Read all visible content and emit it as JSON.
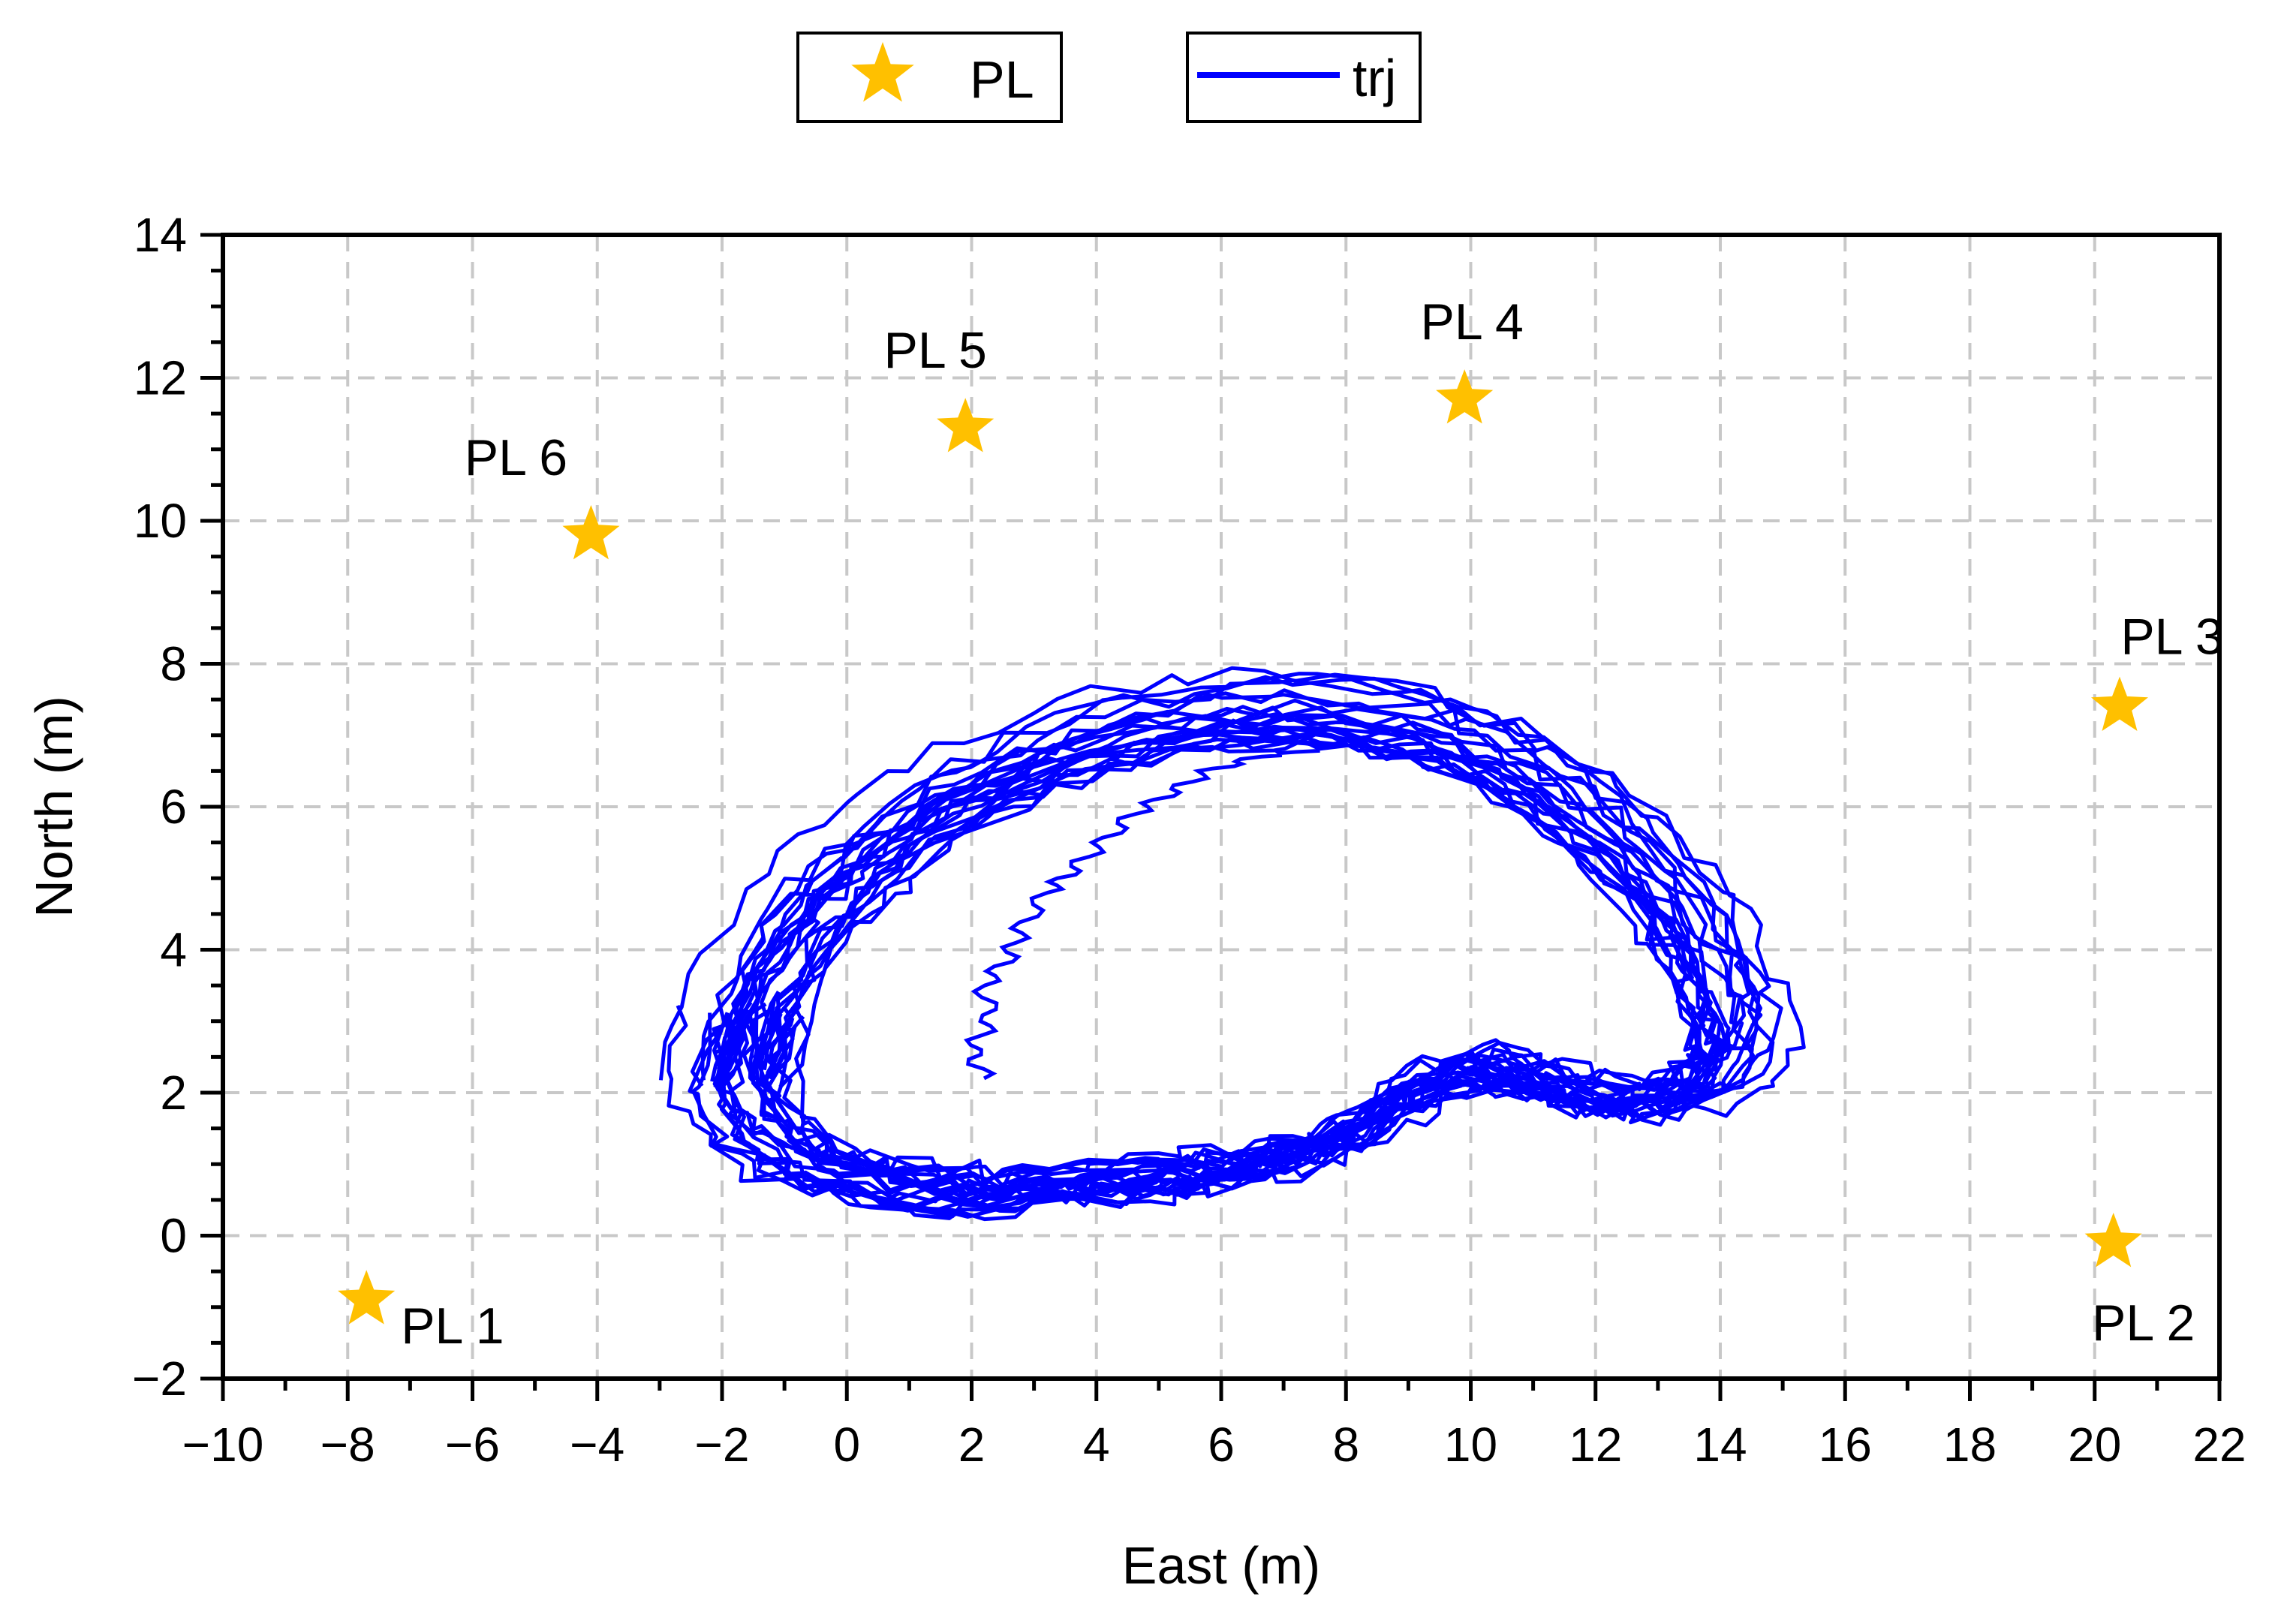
{
  "chart_data": {
    "type": "scatter",
    "xlabel": "East (m)",
    "ylabel": "North (m)",
    "xlim": [
      -10,
      22
    ],
    "ylim": [
      -2,
      14
    ],
    "x_ticks": [
      -10,
      -8,
      -6,
      -4,
      -2,
      0,
      2,
      4,
      6,
      8,
      10,
      12,
      14,
      16,
      18,
      20,
      22
    ],
    "y_ticks": [
      -2,
      0,
      2,
      4,
      6,
      8,
      10,
      12,
      14
    ],
    "x_tick_labels": [
      "−10",
      "−8",
      "−6",
      "−4",
      "−2",
      "0",
      "2",
      "4",
      "6",
      "8",
      "10",
      "12",
      "14",
      "16",
      "18",
      "20",
      "22"
    ],
    "y_tick_labels": [
      "−2",
      "0",
      "2",
      "4",
      "6",
      "8",
      "10",
      "12",
      "14"
    ],
    "grid": true,
    "legend_position": "top-center",
    "series": [
      {
        "name": "PL",
        "kind": "star-markers",
        "color": "#FFC000",
        "points": [
          {
            "label": "PL 1",
            "x": -7.7,
            "y": -0.9
          },
          {
            "label": "PL 2",
            "x": 20.3,
            "y": -0.1
          },
          {
            "label": "PL 3",
            "x": 20.4,
            "y": 7.4
          },
          {
            "label": "PL 4",
            "x": 9.9,
            "y": 11.7
          },
          {
            "label": "PL 5",
            "x": 1.9,
            "y": 11.3
          },
          {
            "label": "PL 6",
            "x": -4.1,
            "y": 9.8
          }
        ]
      },
      {
        "name": "trj",
        "kind": "line",
        "color": "#0000FF",
        "loop_count": 22,
        "loop_outline": [
          [
            -2.0,
            2.3
          ],
          [
            -1.6,
            3.5
          ],
          [
            -0.8,
            4.6
          ],
          [
            0.3,
            5.5
          ],
          [
            1.7,
            6.3
          ],
          [
            3.5,
            7.0
          ],
          [
            5.5,
            7.4
          ],
          [
            7.5,
            7.5
          ],
          [
            9.5,
            7.2
          ],
          [
            11.0,
            6.6
          ],
          [
            12.3,
            5.8
          ],
          [
            13.4,
            4.8
          ],
          [
            14.1,
            3.7
          ],
          [
            14.4,
            2.8
          ],
          [
            14.0,
            2.2
          ],
          [
            13.0,
            1.9
          ],
          [
            12.0,
            2.0
          ],
          [
            11.0,
            2.3
          ],
          [
            10.0,
            2.4
          ],
          [
            9.0,
            2.0
          ],
          [
            8.0,
            1.4
          ],
          [
            7.0,
            1.1
          ],
          [
            6.0,
            0.9
          ],
          [
            5.0,
            0.8
          ],
          [
            3.5,
            0.7
          ],
          [
            2.0,
            0.6
          ],
          [
            0.5,
            0.7
          ],
          [
            -0.7,
            1.0
          ],
          [
            -1.6,
            1.5
          ]
        ],
        "inner_path": [
          [
            2.2,
            2.2
          ],
          [
            2.0,
            2.6
          ],
          [
            2.3,
            3.0
          ],
          [
            2.2,
            3.5
          ],
          [
            2.6,
            3.9
          ],
          [
            2.8,
            4.3
          ],
          [
            3.2,
            4.8
          ],
          [
            3.6,
            5.1
          ],
          [
            4.1,
            5.5
          ],
          [
            4.6,
            5.9
          ],
          [
            5.2,
            6.2
          ],
          [
            5.8,
            6.5
          ],
          [
            6.6,
            6.7
          ],
          [
            7.6,
            6.8
          ]
        ]
      }
    ]
  }
}
